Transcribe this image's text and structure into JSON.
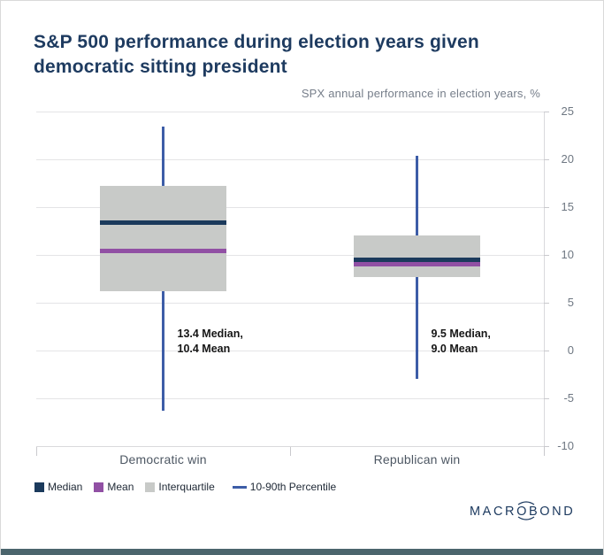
{
  "header": {
    "title": "S&P 500 performance during election years given\ndemocratic sitting president",
    "subtitle": "SPX annual performance in election years, %"
  },
  "chart_data": {
    "type": "boxplot",
    "categories": [
      "Democratic win",
      "Republican win"
    ],
    "series": [
      {
        "category": "Democratic win",
        "p10": -6.3,
        "q1": 6.2,
        "mean": 10.4,
        "median": 13.4,
        "q3": 17.2,
        "p90": 23.4,
        "annotation": "13.4 Median,\n10.4 Mean"
      },
      {
        "category": "Republican win",
        "p10": -3.0,
        "q1": 7.7,
        "mean": 9.0,
        "median": 9.5,
        "q3": 12.0,
        "p90": 20.4,
        "annotation": "9.5 Median,\n9.0 Mean"
      }
    ],
    "yticks": [
      "25",
      "20",
      "15",
      "10",
      "5",
      "0",
      "-5",
      "-10"
    ],
    "ylim": [
      -10,
      25
    ],
    "grid": true,
    "axis_side": "right",
    "legend_position": "bottom-left"
  },
  "legend": {
    "items": [
      {
        "label": "Median",
        "swatch": "square",
        "color": "#1b3a5c"
      },
      {
        "label": "Mean",
        "swatch": "square",
        "color": "#9150a4"
      },
      {
        "label": "Interquartile",
        "swatch": "square",
        "color": "#c8cac8"
      },
      {
        "label": "10-90th Percentile",
        "swatch": "line",
        "color": "#3d5da7"
      }
    ]
  },
  "branding": {
    "logo_text": "MACROBOND"
  },
  "colors": {
    "title_navy": "#1e3b60",
    "median_navy": "#1b3a5c",
    "mean_purple": "#9150a4",
    "iqr_gray": "#c8cac8",
    "whisker_blue": "#3d5da7",
    "bottom_bar_teal": "#4b656d",
    "grid_gray": "#e4e4e6"
  }
}
